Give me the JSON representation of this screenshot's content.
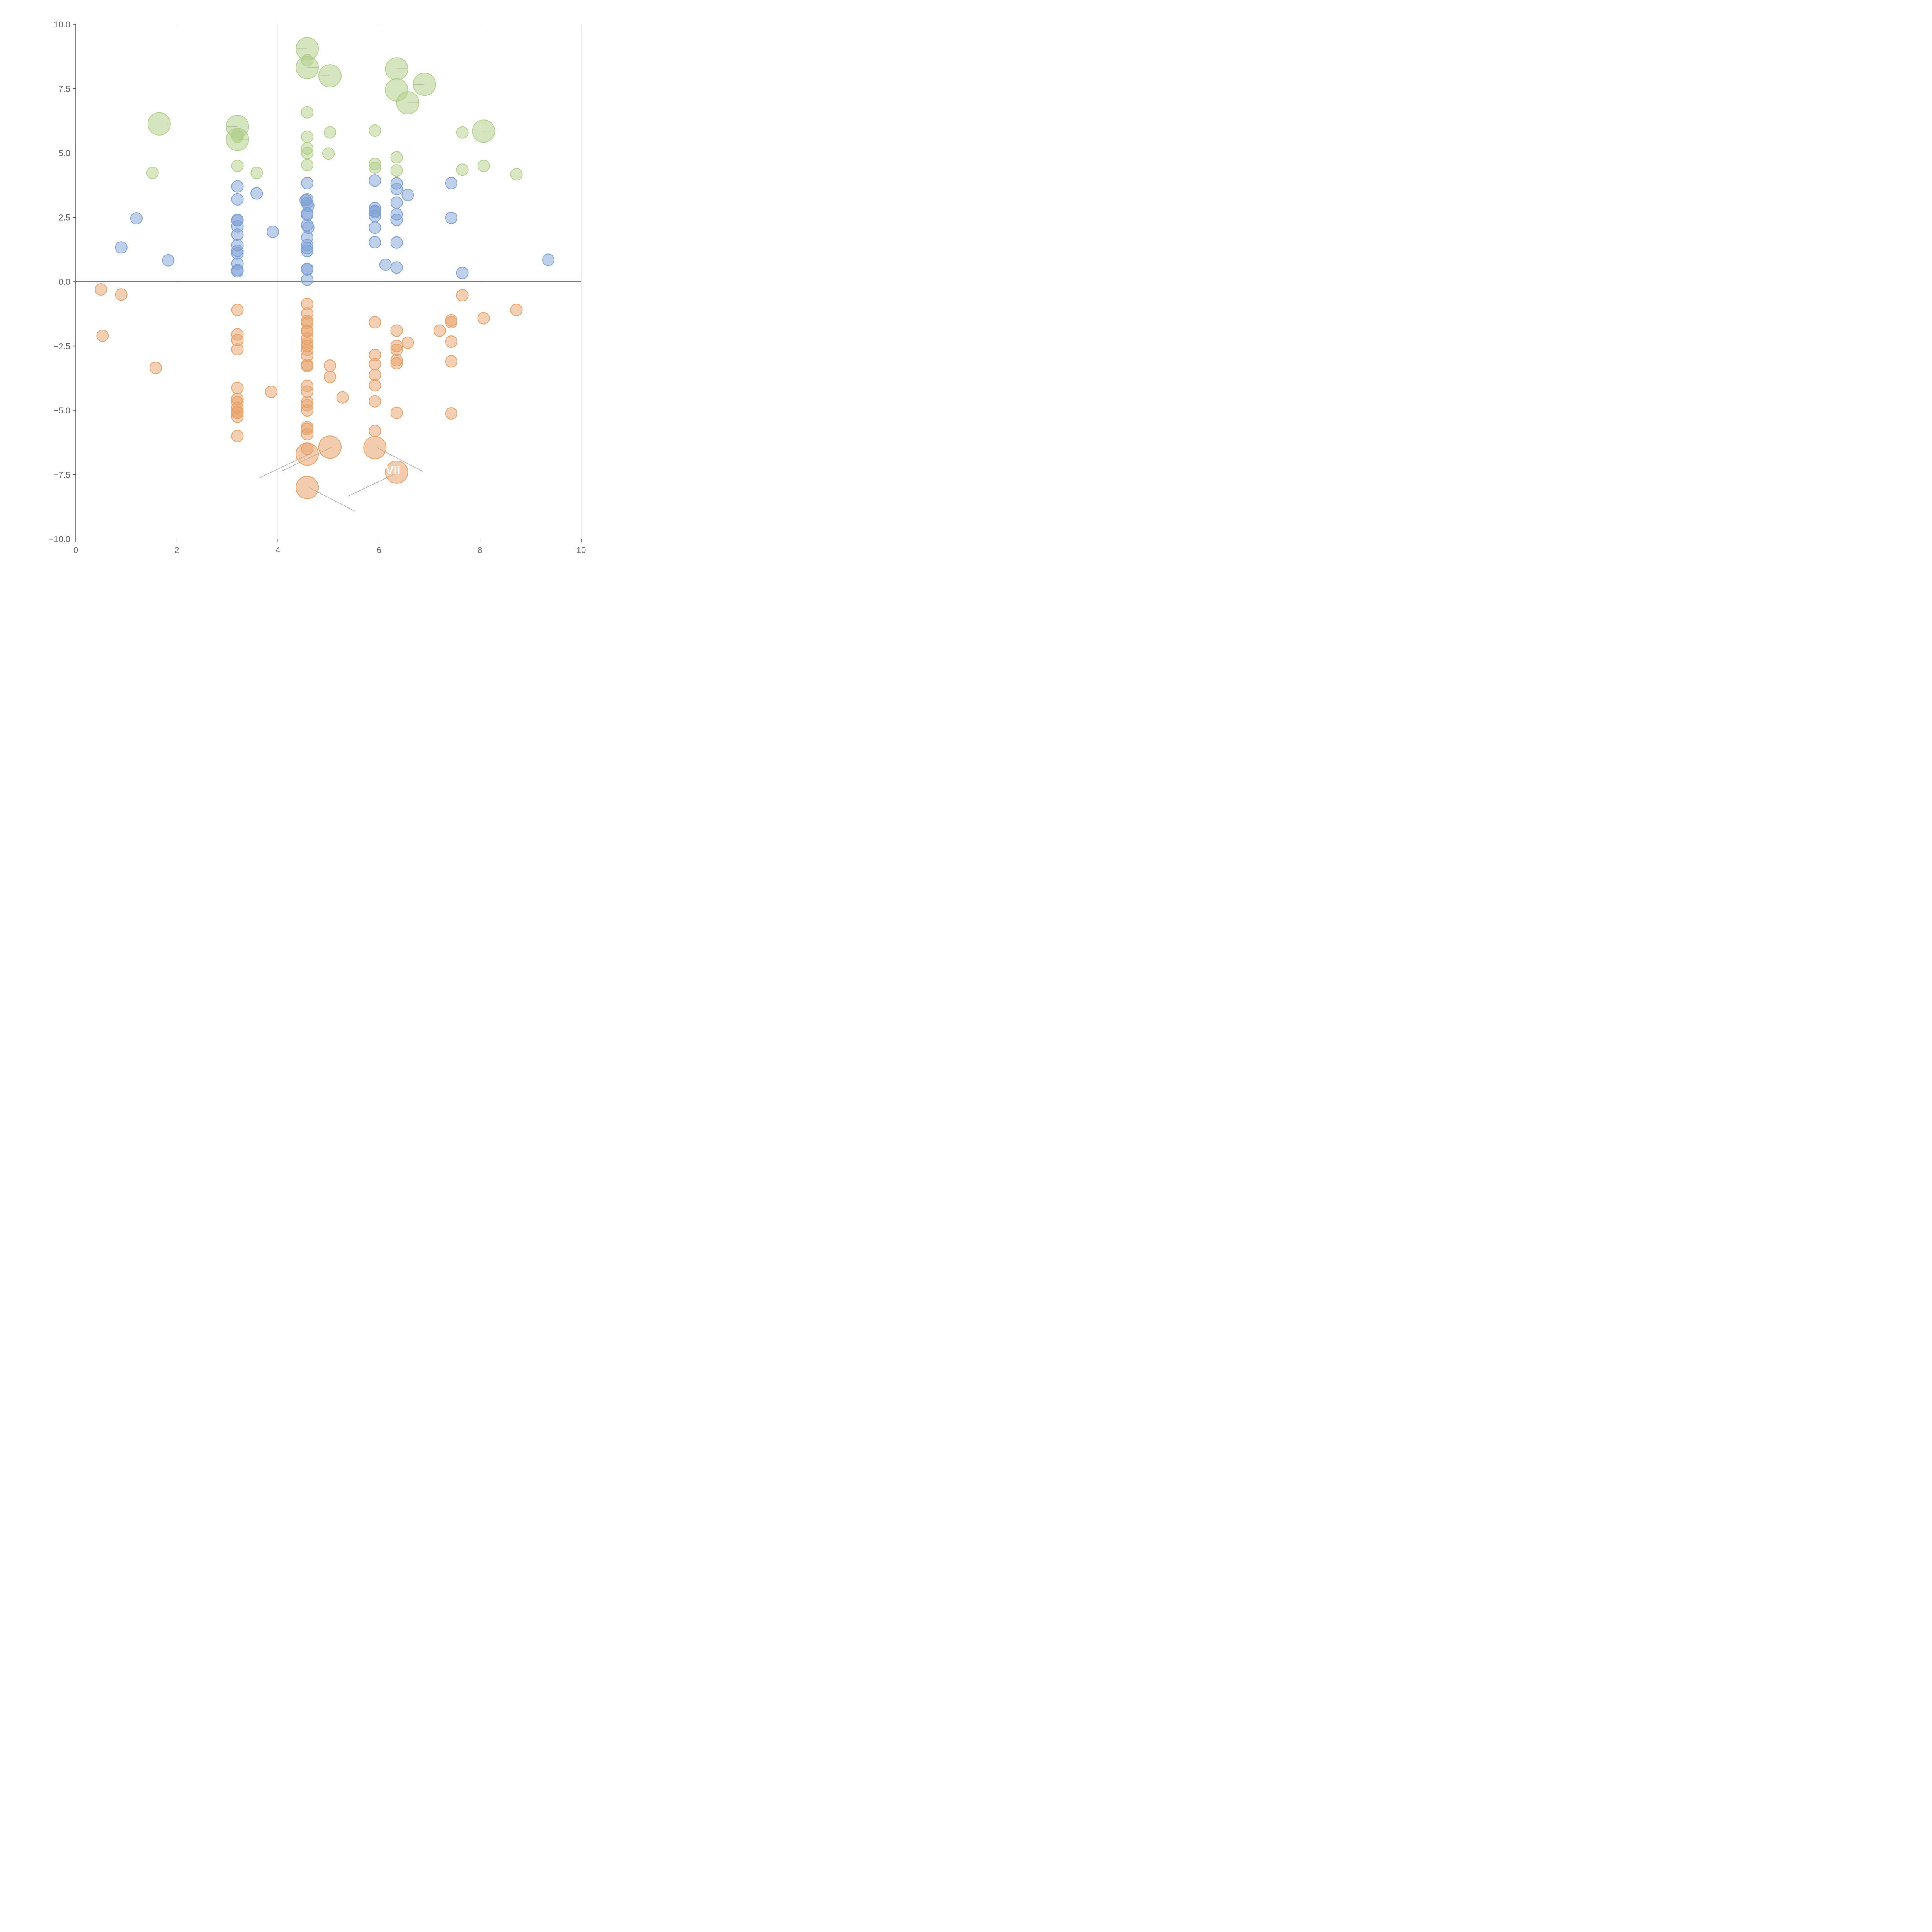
{
  "chart_data": {
    "type": "scatter",
    "title": "",
    "xlabel": "",
    "ylabel": "",
    "xlim": [
      0,
      10
    ],
    "ylim": [
      -10,
      10
    ],
    "x_ticks": [
      "0",
      "2",
      "4",
      "6",
      "8",
      "10"
    ],
    "y_ticks": [
      "10.0",
      "7.5",
      "5.0",
      "2.5",
      "0.0",
      "−2.5",
      "−5.0",
      "−7.5",
      "−10.0"
    ],
    "x_tick_values": [
      0,
      2,
      4,
      6,
      8,
      10
    ],
    "y_tick_values": [
      10,
      7.5,
      5,
      2.5,
      0,
      -2.5,
      -5,
      -7.5,
      -10
    ],
    "vertical_grid": true,
    "zero_line": true,
    "colors": {
      "blue": "#7fa2d6",
      "orange": "#e8a26a",
      "green": "#b3d08c"
    },
    "series": [
      {
        "name": "blue",
        "color": "#7fa2d6",
        "points": [
          [
            0.9,
            1.33
          ],
          [
            1.2,
            2.46
          ],
          [
            1.83,
            0.83
          ],
          [
            3.2,
            3.7
          ],
          [
            3.2,
            3.2
          ],
          [
            3.2,
            2.4
          ],
          [
            3.2,
            2.38
          ],
          [
            3.2,
            2.15
          ],
          [
            3.2,
            1.83
          ],
          [
            3.2,
            1.42
          ],
          [
            3.2,
            1.2
          ],
          [
            3.2,
            1.1
          ],
          [
            3.2,
            0.7
          ],
          [
            3.2,
            0.45
          ],
          [
            3.2,
            0.4
          ],
          [
            3.58,
            3.43
          ],
          [
            3.9,
            1.94
          ],
          [
            4.58,
            3.83
          ],
          [
            4.58,
            3.2
          ],
          [
            4.55,
            3.17
          ],
          [
            4.58,
            3.05
          ],
          [
            4.6,
            2.95
          ],
          [
            4.58,
            2.65
          ],
          [
            4.58,
            2.6
          ],
          [
            4.58,
            2.2
          ],
          [
            4.6,
            2.1
          ],
          [
            4.58,
            1.72
          ],
          [
            4.58,
            1.42
          ],
          [
            4.58,
            1.3
          ],
          [
            4.58,
            1.2
          ],
          [
            4.58,
            0.5
          ],
          [
            4.58,
            0.48
          ],
          [
            4.58,
            0.08
          ],
          [
            5.92,
            3.93
          ],
          [
            5.92,
            2.85
          ],
          [
            5.92,
            2.75
          ],
          [
            5.92,
            2.7
          ],
          [
            5.92,
            2.55
          ],
          [
            5.92,
            2.1
          ],
          [
            5.92,
            1.53
          ],
          [
            6.13,
            0.66
          ],
          [
            6.35,
            3.82
          ],
          [
            6.35,
            3.6
          ],
          [
            6.57,
            3.37
          ],
          [
            6.35,
            3.07
          ],
          [
            6.35,
            2.62
          ],
          [
            6.35,
            2.4
          ],
          [
            6.35,
            1.52
          ],
          [
            6.35,
            0.55
          ],
          [
            7.43,
            3.83
          ],
          [
            7.43,
            2.48
          ],
          [
            7.65,
            0.34
          ],
          [
            9.35,
            0.85
          ]
        ]
      },
      {
        "name": "orange",
        "color": "#e8a26a",
        "points": [
          [
            0.5,
            -0.3
          ],
          [
            0.9,
            -0.5
          ],
          [
            0.53,
            -2.1
          ],
          [
            1.58,
            -3.35
          ],
          [
            3.2,
            -1.1
          ],
          [
            3.2,
            -2.05
          ],
          [
            3.2,
            -2.27
          ],
          [
            3.2,
            -2.63
          ],
          [
            3.2,
            -4.13
          ],
          [
            3.2,
            -4.55
          ],
          [
            3.2,
            -4.68
          ],
          [
            3.2,
            -4.9
          ],
          [
            3.2,
            -5.05
          ],
          [
            3.2,
            -5.1
          ],
          [
            3.2,
            -5.25
          ],
          [
            3.2,
            -6.0
          ],
          [
            3.87,
            -4.28
          ],
          [
            4.58,
            -0.87
          ],
          [
            4.58,
            -1.23
          ],
          [
            4.58,
            -1.53
          ],
          [
            4.58,
            -1.6
          ],
          [
            4.58,
            -1.93
          ],
          [
            4.58,
            -1.9
          ],
          [
            4.58,
            -2.2
          ],
          [
            4.58,
            -2.4
          ],
          [
            4.58,
            -2.5
          ],
          [
            4.58,
            -2.65
          ],
          [
            4.58,
            -2.88
          ],
          [
            4.58,
            -3.23
          ],
          [
            4.58,
            -3.28
          ],
          [
            4.58,
            -4.05
          ],
          [
            4.58,
            -4.27
          ],
          [
            4.58,
            -4.67
          ],
          [
            4.58,
            -4.8
          ],
          [
            4.58,
            -5.0
          ],
          [
            4.58,
            -5.65
          ],
          [
            4.58,
            -5.73
          ],
          [
            4.58,
            -5.93
          ],
          [
            4.58,
            -6.5
          ],
          [
            5.03,
            -3.26
          ],
          [
            5.03,
            -3.7
          ],
          [
            5.28,
            -4.5
          ],
          [
            5.92,
            -1.58
          ],
          [
            5.92,
            -2.85
          ],
          [
            5.92,
            -3.2
          ],
          [
            5.92,
            -3.62
          ],
          [
            5.92,
            -4.03
          ],
          [
            5.92,
            -4.65
          ],
          [
            5.92,
            -5.8
          ],
          [
            6.35,
            -1.9
          ],
          [
            6.35,
            -2.5
          ],
          [
            6.35,
            -2.65
          ],
          [
            6.35,
            -3.05
          ],
          [
            6.35,
            -3.17
          ],
          [
            6.57,
            -2.37
          ],
          [
            6.35,
            -5.1
          ],
          [
            7.2,
            -1.9
          ],
          [
            7.43,
            -1.5
          ],
          [
            7.43,
            -1.58
          ],
          [
            7.43,
            -2.33
          ],
          [
            7.43,
            -3.1
          ],
          [
            7.43,
            -5.12
          ],
          [
            7.65,
            -0.53
          ],
          [
            8.07,
            -1.42
          ],
          [
            8.72,
            -1.1
          ]
        ]
      },
      {
        "name": "green",
        "color": "#b3d08c",
        "points": [
          [
            1.52,
            4.23
          ],
          [
            3.2,
            5.7
          ],
          [
            3.2,
            5.63
          ],
          [
            3.2,
            4.5
          ],
          [
            3.58,
            4.23
          ],
          [
            4.58,
            8.6
          ],
          [
            4.58,
            6.58
          ],
          [
            4.58,
            5.63
          ],
          [
            4.58,
            5.18
          ],
          [
            4.58,
            5.0
          ],
          [
            4.58,
            4.53
          ],
          [
            5.03,
            5.8
          ],
          [
            5.0,
            4.98
          ],
          [
            5.92,
            5.87
          ],
          [
            5.92,
            4.58
          ],
          [
            5.92,
            4.43
          ],
          [
            6.35,
            4.83
          ],
          [
            6.35,
            4.32
          ],
          [
            7.65,
            5.8
          ],
          [
            7.65,
            4.35
          ],
          [
            8.07,
            4.5
          ],
          [
            8.72,
            4.17
          ]
        ]
      }
    ],
    "labeled_bubbles": [
      {
        "series": "green",
        "x": 1.65,
        "y": 6.13,
        "label": ""
      },
      {
        "series": "green",
        "x": 3.2,
        "y": 6.03,
        "label": ""
      },
      {
        "series": "green",
        "x": 3.2,
        "y": 5.53,
        "label": ""
      },
      {
        "series": "green",
        "x": 4.58,
        "y": 9.05,
        "label": ""
      },
      {
        "series": "green",
        "x": 4.58,
        "y": 8.32,
        "label": ""
      },
      {
        "series": "green",
        "x": 5.03,
        "y": 8.0,
        "label": ""
      },
      {
        "series": "green",
        "x": 6.35,
        "y": 8.27,
        "label": ""
      },
      {
        "series": "green",
        "x": 6.35,
        "y": 7.45,
        "label": ""
      },
      {
        "series": "green",
        "x": 6.57,
        "y": 6.95,
        "label": ""
      },
      {
        "series": "green",
        "x": 6.9,
        "y": 7.67,
        "label": ""
      },
      {
        "series": "green",
        "x": 8.07,
        "y": 5.85,
        "label": ""
      },
      {
        "series": "orange",
        "x": 4.58,
        "y": -6.7,
        "label": ""
      },
      {
        "series": "orange",
        "x": 4.58,
        "y": -8.0,
        "label": ""
      },
      {
        "series": "orange",
        "x": 5.03,
        "y": -6.43,
        "label": ""
      },
      {
        "series": "orange",
        "x": 5.92,
        "y": -6.45,
        "label": ""
      },
      {
        "series": "orange",
        "x": 6.35,
        "y": -7.4,
        "label": "VII"
      }
    ]
  }
}
